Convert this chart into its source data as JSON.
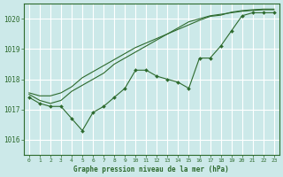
{
  "title": "Graphe pression niveau de la mer (hPa)",
  "bg_color": "#cce9e9",
  "plot_bg_color": "#cce9e9",
  "grid_color": "#ffffff",
  "line_color": "#2d6a2d",
  "marker_color": "#2d6a2d",
  "x_ticks": [
    0,
    1,
    2,
    3,
    4,
    5,
    6,
    7,
    8,
    9,
    10,
    11,
    12,
    13,
    14,
    15,
    16,
    17,
    18,
    19,
    20,
    21,
    22,
    23
  ],
  "y_ticks": [
    1016,
    1017,
    1018,
    1019,
    1020
  ],
  "ylim": [
    1015.5,
    1020.5
  ],
  "xlim": [
    -0.5,
    23.5
  ],
  "series_main": [
    1017.4,
    1017.2,
    1017.1,
    1017.1,
    1016.7,
    1016.3,
    1016.9,
    1017.1,
    1017.4,
    1017.7,
    1018.3,
    1018.3,
    1018.1,
    1018.0,
    1017.9,
    1017.7,
    1018.7,
    1018.7,
    1019.1,
    1019.6,
    1020.1,
    1020.2,
    1020.2,
    1020.2
  ],
  "series_trend1": [
    1017.5,
    1017.3,
    1017.2,
    1017.3,
    1017.6,
    1017.8,
    1018.0,
    1018.2,
    1018.5,
    1018.7,
    1018.9,
    1019.1,
    1019.3,
    1019.5,
    1019.7,
    1019.9,
    1020.0,
    1020.1,
    1020.15,
    1020.2,
    1020.25,
    1020.28,
    1020.3,
    1020.3
  ],
  "series_trend2": [
    1017.55,
    1017.45,
    1017.45,
    1017.55,
    1017.75,
    1018.05,
    1018.25,
    1018.45,
    1018.65,
    1018.85,
    1019.05,
    1019.2,
    1019.35,
    1019.5,
    1019.65,
    1019.8,
    1019.95,
    1020.08,
    1020.12,
    1020.22,
    1020.27,
    1020.3,
    1020.32,
    1020.32
  ],
  "xlabel": "Graphe pression niveau de la mer (hPa)"
}
